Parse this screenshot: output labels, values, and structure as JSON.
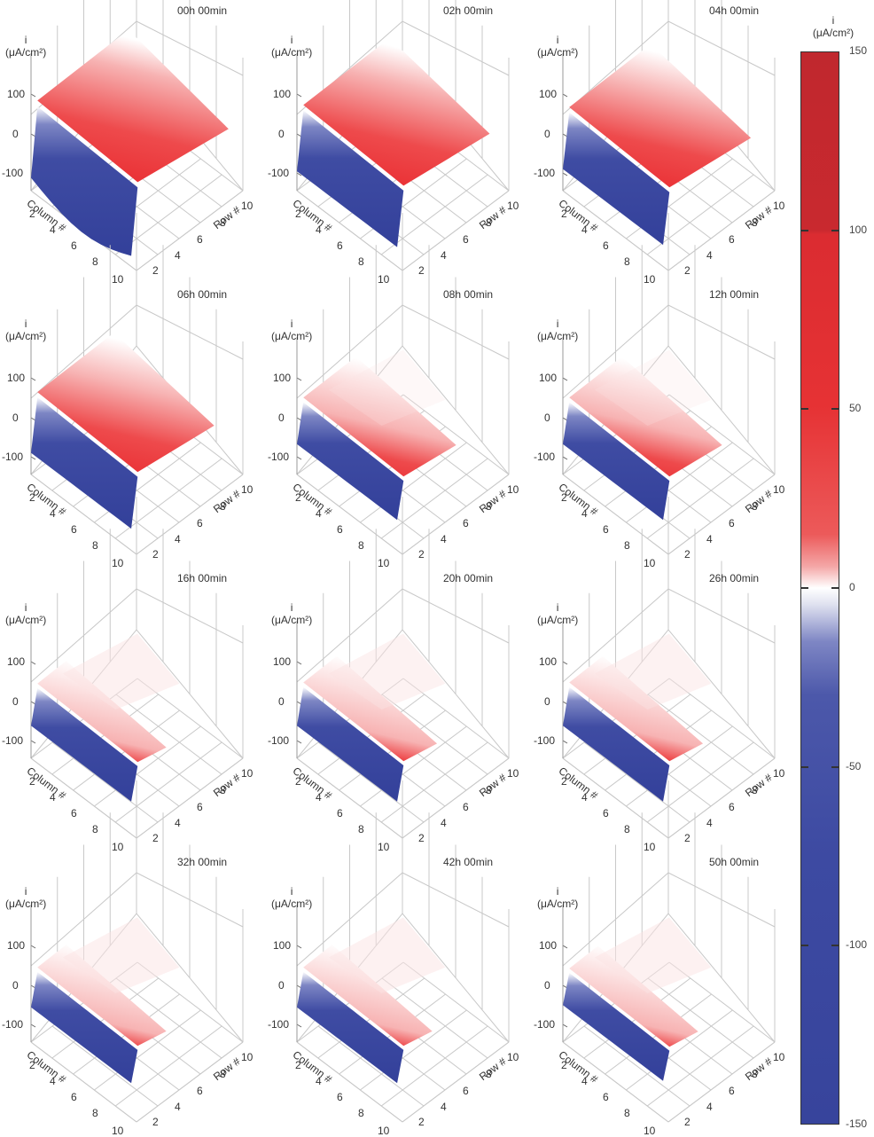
{
  "chart_data": {
    "type": "surface3d-grid",
    "description": "Small multiples of 3D surface plots of current density i over a 10x10 electrode array at successive times",
    "zlabel": "i (μA/cm²)",
    "xlabel": "Column #",
    "ylabel": "Row #",
    "zticks": [
      "100",
      "0",
      "-100"
    ],
    "xticks": [
      "2",
      "4",
      "6",
      "8",
      "10"
    ],
    "yticks": [
      "2",
      "4",
      "6",
      "8",
      "10"
    ],
    "zlim": [
      -150,
      150
    ],
    "panels": [
      {
        "title": "00h 00min",
        "anodic_extent": 0.95,
        "cathodic_depth": 1.0,
        "peak": 130
      },
      {
        "title": "02h 00min",
        "anodic_extent": 0.9,
        "cathodic_depth": 0.85,
        "peak": 110
      },
      {
        "title": "04h 00min",
        "anodic_extent": 0.85,
        "cathodic_depth": 0.8,
        "peak": 100
      },
      {
        "title": "06h 00min",
        "anodic_extent": 0.8,
        "cathodic_depth": 0.8,
        "peak": 95
      },
      {
        "title": "08h 00min",
        "anodic_extent": 0.55,
        "cathodic_depth": 0.6,
        "peak": 70
      },
      {
        "title": "12h 00min",
        "anodic_extent": 0.55,
        "cathodic_depth": 0.6,
        "peak": 70
      },
      {
        "title": "16h 00min",
        "anodic_extent": 0.3,
        "cathodic_depth": 0.55,
        "peak": 60
      },
      {
        "title": "20h 00min",
        "anodic_extent": 0.35,
        "cathodic_depth": 0.55,
        "peak": 65
      },
      {
        "title": "26h 00min",
        "anodic_extent": 0.35,
        "cathodic_depth": 0.55,
        "peak": 65
      },
      {
        "title": "32h 00min",
        "anodic_extent": 0.3,
        "cathodic_depth": 0.5,
        "peak": 60
      },
      {
        "title": "42h 00min",
        "anodic_extent": 0.3,
        "cathodic_depth": 0.5,
        "peak": 60
      },
      {
        "title": "50h 00min",
        "anodic_extent": 0.3,
        "cathodic_depth": 0.45,
        "peak": 55
      }
    ],
    "colorbar": {
      "title": "i (μA/cm²)",
      "ticks": [
        150,
        100,
        50,
        0,
        -50,
        -100,
        -150
      ],
      "colormap": "blue-white-red",
      "colors": {
        "min": "#37449c",
        "zero": "#ffffff",
        "max": "#c0282e"
      }
    }
  },
  "axis_labels": {
    "i": "i",
    "unit": "(μA/cm²)",
    "column": "Column #",
    "row": "Row #"
  },
  "colorbar": {
    "title_i": "i",
    "title_unit": "(μA/cm²)",
    "labels": [
      "150",
      "100",
      "50",
      "0",
      "-50",
      "-100",
      "-150"
    ]
  }
}
